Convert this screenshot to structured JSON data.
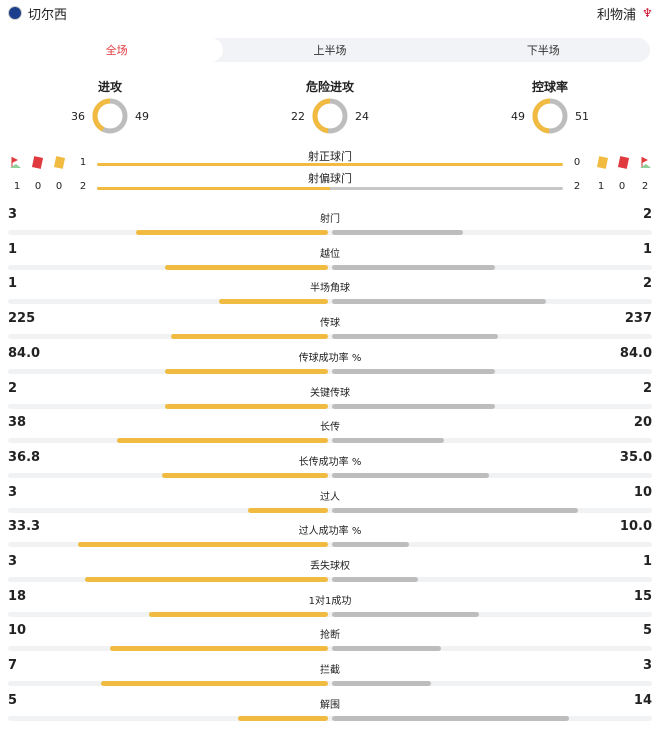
{
  "header": {
    "home": "切尔西",
    "away": "利物浦"
  },
  "tabs": [
    {
      "label": "全场",
      "active": true
    },
    {
      "label": "上半场"
    },
    {
      "label": "下半场"
    }
  ],
  "colors": {
    "home": "#f0bb40",
    "away": "#bdbdbd",
    "accent": "#e0393e"
  },
  "rings": [
    {
      "title": "进攻",
      "home": 36,
      "away": 49
    },
    {
      "title": "危险进攻",
      "home": 22,
      "away": 24
    },
    {
      "title": "控球率",
      "home": 49,
      "away": 51
    }
  ],
  "shots": {
    "on_target": {
      "label": "射正球门",
      "home": "1",
      "away": "0"
    },
    "off_target": {
      "label": "射偏球门",
      "home": "2",
      "away": "2"
    },
    "home_counts": {
      "corners": "1",
      "red": "0",
      "yellow": "0"
    },
    "away_counts": {
      "yellow": "1",
      "red": "0",
      "corners": "2"
    },
    "icons": [
      "corner-flag-icon",
      "red-card-icon",
      "yellow-card-icon"
    ]
  },
  "stats": [
    {
      "name": "射门",
      "home": "3",
      "away": "2",
      "home_fill": 0.6,
      "away_fill": 0.41
    },
    {
      "name": "越位",
      "home": "1",
      "away": "1",
      "home_fill": 0.51,
      "away_fill": 0.51
    },
    {
      "name": "半场角球",
      "home": "1",
      "away": "2",
      "home_fill": 0.34,
      "away_fill": 0.67
    },
    {
      "name": "传球",
      "home": "225",
      "away": "237",
      "home_fill": 0.49,
      "away_fill": 0.52
    },
    {
      "name": "传球成功率 %",
      "home": "84.0",
      "away": "84.0",
      "home_fill": 0.51,
      "away_fill": 0.51
    },
    {
      "name": "关键传球",
      "home": "2",
      "away": "2",
      "home_fill": 0.51,
      "away_fill": 0.51
    },
    {
      "name": "长传",
      "home": "38",
      "away": "20",
      "home_fill": 0.66,
      "away_fill": 0.35
    },
    {
      "name": "长传成功率 %",
      "home": "36.8",
      "away": "35.0",
      "home_fill": 0.52,
      "away_fill": 0.49
    },
    {
      "name": "过人",
      "home": "3",
      "away": "10",
      "home_fill": 0.25,
      "away_fill": 0.77
    },
    {
      "name": "过人成功率 %",
      "home": "33.3",
      "away": "10.0",
      "home_fill": 0.78,
      "away_fill": 0.24
    },
    {
      "name": "丢失球权",
      "home": "3",
      "away": "1",
      "home_fill": 0.76,
      "away_fill": 0.27
    },
    {
      "name": "1对1成功",
      "home": "18",
      "away": "15",
      "home_fill": 0.56,
      "away_fill": 0.46
    },
    {
      "name": "抢断",
      "home": "10",
      "away": "5",
      "home_fill": 0.68,
      "away_fill": 0.34
    },
    {
      "name": "拦截",
      "home": "7",
      "away": "3",
      "home_fill": 0.71,
      "away_fill": 0.31
    },
    {
      "name": "解围",
      "home": "5",
      "away": "14",
      "home_fill": 0.28,
      "away_fill": 0.74
    }
  ]
}
